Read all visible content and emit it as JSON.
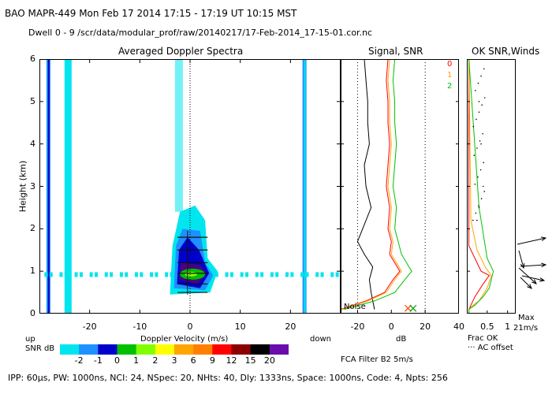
{
  "header": {
    "line1": "BAO  MAPR-449  Mon Feb 17 2014 17:15 - 17:19 UT 10:15 MST",
    "line2": "Dwell  0 - 9  /scr/data/modular_prof/raw/20140217/17-Feb-2014_17-15-01.cor.nc",
    "footer": "IPP: 60μs, PW: 1000ns, NCI: 24, NSpec: 20, NHts: 40, Dly: 1333ns, Space: 1000ns, Code: 4, Npts: 256"
  },
  "chart_data": [
    {
      "type": "heatmap",
      "title": "Averaged Doppler Spectra",
      "xlabel": "Doppler Velocity (m/s)",
      "ylabel": "Height (km)",
      "xlim": [
        -30,
        30
      ],
      "ylim": [
        0,
        6
      ],
      "xticks": [
        -20,
        -10,
        0,
        10,
        20
      ],
      "yticks": [
        0,
        1,
        2,
        3,
        4,
        5,
        6
      ],
      "x_end_labels": {
        "left": "up",
        "right": "down"
      },
      "colorbar": {
        "label": "SNR dB",
        "ticks": [
          "-2",
          "-1",
          "0",
          "1",
          "2",
          "3",
          "6",
          "9",
          "12",
          "15",
          "20"
        ],
        "colors": [
          "#00e5ee",
          "#1e90ff",
          "#0000cd",
          "#00c000",
          "#7fff00",
          "#ffff00",
          "#ffa500",
          "#ff7f00",
          "#ff0000",
          "#8b0000",
          "#000000",
          "#6a0dad"
        ]
      },
      "features": [
        {
          "name": "strong return core",
          "velocity": 0,
          "height_km": 0.9,
          "snr_db": 2
        },
        {
          "name": "weak return column",
          "velocity": 0,
          "height_km_range": [
            0.4,
            2.5
          ]
        },
        {
          "name": "ground clutter streak",
          "velocity": -28,
          "height_km_range": [
            0,
            6
          ]
        },
        {
          "name": "interference band",
          "velocity": -24,
          "height_km_range": [
            0,
            6
          ]
        },
        {
          "name": "interference line",
          "velocity": 23,
          "height_km_range": [
            0,
            6
          ]
        },
        {
          "name": "noise band",
          "height_km": 0.9,
          "velocity_range": [
            -30,
            30
          ]
        }
      ]
    },
    {
      "type": "line",
      "title": "Signal, SNR",
      "xlabel": "dB",
      "xlim": [
        -30,
        40
      ],
      "ylim": [
        0,
        6
      ],
      "xticks": [
        -20,
        0,
        20,
        40
      ],
      "annotation": "Noise",
      "series": [
        {
          "name": "Signal",
          "color": "#000000",
          "x": [
            -16,
            -15,
            -14,
            -14,
            -13,
            -16,
            -15,
            -12,
            -17,
            -20,
            -16,
            -11,
            -13,
            -12,
            -11,
            -10
          ],
          "y": [
            6.0,
            5.5,
            5.0,
            4.5,
            4.0,
            3.5,
            3.0,
            2.5,
            2.0,
            1.7,
            1.4,
            1.1,
            0.8,
            0.5,
            0.3,
            0.1
          ]
        },
        {
          "name": "SNR 0",
          "color": "#ff0000",
          "x": [
            -2,
            -3,
            -2,
            -2,
            -1,
            -2,
            -3,
            -1,
            -2,
            0,
            -1,
            5,
            1,
            -4,
            -15,
            -30
          ],
          "y": [
            6.0,
            5.5,
            5.0,
            4.5,
            4.0,
            3.5,
            3.0,
            2.5,
            2.0,
            1.7,
            1.4,
            1.0,
            0.8,
            0.5,
            0.3,
            0.1
          ]
        },
        {
          "name": "SNR 1",
          "color": "#ffa500",
          "x": [
            -1,
            -2,
            -1,
            -1,
            0,
            -1,
            -2,
            0,
            -1,
            1,
            0,
            6,
            2,
            -3,
            -14,
            -29
          ],
          "y": [
            6.0,
            5.5,
            5.0,
            4.5,
            4.0,
            3.5,
            3.0,
            2.5,
            2.0,
            1.7,
            1.4,
            1.0,
            0.8,
            0.5,
            0.3,
            0.1
          ]
        },
        {
          "name": "SNR 2",
          "color": "#00c000",
          "x": [
            2,
            1,
            2,
            2,
            3,
            2,
            1,
            3,
            2,
            4,
            6,
            12,
            8,
            2,
            -10,
            -28
          ],
          "y": [
            6.0,
            5.5,
            5.0,
            4.5,
            4.0,
            3.5,
            3.0,
            2.5,
            2.0,
            1.7,
            1.4,
            1.0,
            0.8,
            0.5,
            0.3,
            0.1
          ]
        }
      ]
    },
    {
      "type": "line",
      "title": "OK SNR,Winds",
      "xlim": [
        0,
        1.2
      ],
      "ylim": [
        0,
        6
      ],
      "xticks": [
        0.5,
        1
      ],
      "xlabels": [
        "Frac OK",
        "··· AC offset"
      ],
      "max_label": "Max",
      "max_value": "21m/s",
      "legend": [
        {
          "label": "0",
          "color": "#ff0000"
        },
        {
          "label": "1",
          "color": "#ffa500"
        },
        {
          "label": "2",
          "color": "#00c000"
        }
      ],
      "series": [
        {
          "name": "0",
          "color": "#ff0000",
          "x": [
            0.05,
            0.05,
            0.2,
            0.35,
            0.55,
            0.4,
            0.2,
            0.1,
            0.05,
            0.05
          ],
          "y": [
            6.0,
            1.6,
            1.3,
            1.0,
            0.9,
            0.7,
            0.4,
            0.2,
            0.1,
            0.0
          ]
        },
        {
          "name": "1",
          "color": "#ffa500",
          "x": [
            0.05,
            0.1,
            0.25,
            0.45,
            0.6,
            0.5,
            0.3,
            0.15,
            0.05,
            0.05
          ],
          "y": [
            6.0,
            2.2,
            1.5,
            1.1,
            0.9,
            0.6,
            0.3,
            0.2,
            0.1,
            0.0
          ]
        },
        {
          "name": "2",
          "color": "#00c000",
          "x": [
            0.05,
            0.3,
            0.35,
            0.5,
            0.65,
            0.55,
            0.4,
            0.2,
            0.05,
            0.05
          ],
          "y": [
            6.0,
            2.5,
            2.2,
            1.3,
            1.0,
            0.6,
            0.4,
            0.2,
            0.1,
            0.0
          ]
        },
        {
          "name": "AC offset",
          "color": "#000000",
          "style": "dotted",
          "x": [
            0.2,
            0.3,
            0.35,
            0.4,
            0.3,
            0.25
          ],
          "y": [
            6.0,
            5.0,
            4.0,
            3.0,
            2.5,
            2.2
          ]
        }
      ]
    }
  ]
}
